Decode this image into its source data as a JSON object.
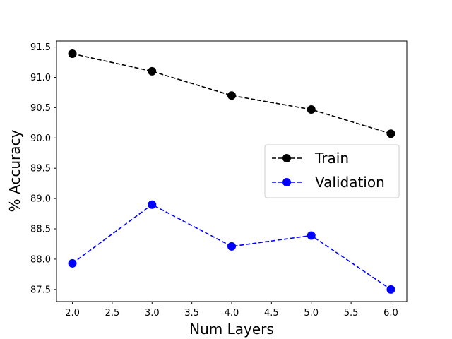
{
  "chart_data": {
    "type": "line",
    "title": "",
    "xlabel": "Num Layers",
    "ylabel": "% Accuracy",
    "xlim": [
      1.8,
      6.2
    ],
    "ylim": [
      87.3,
      91.6
    ],
    "xticks": [
      "2.0",
      "2.5",
      "3.0",
      "3.5",
      "4.0",
      "4.5",
      "5.0",
      "5.5",
      "6.0"
    ],
    "yticks": [
      "87.5",
      "88.0",
      "88.5",
      "89.0",
      "89.5",
      "90.0",
      "90.5",
      "91.0",
      "91.5"
    ],
    "grid": false,
    "legend_position": "center-right",
    "series": [
      {
        "name": "Train",
        "color": "#000000",
        "linestyle": "dashed",
        "marker": "circle",
        "x": [
          2,
          3,
          4,
          5,
          6
        ],
        "y": [
          91.39,
          91.1,
          90.7,
          90.47,
          90.07
        ]
      },
      {
        "name": "Validation",
        "color": "#0000ff",
        "linestyle": "dashed",
        "marker": "circle",
        "x": [
          2,
          3,
          4,
          5,
          6
        ],
        "y": [
          87.93,
          88.9,
          88.21,
          88.39,
          87.5
        ]
      }
    ]
  }
}
